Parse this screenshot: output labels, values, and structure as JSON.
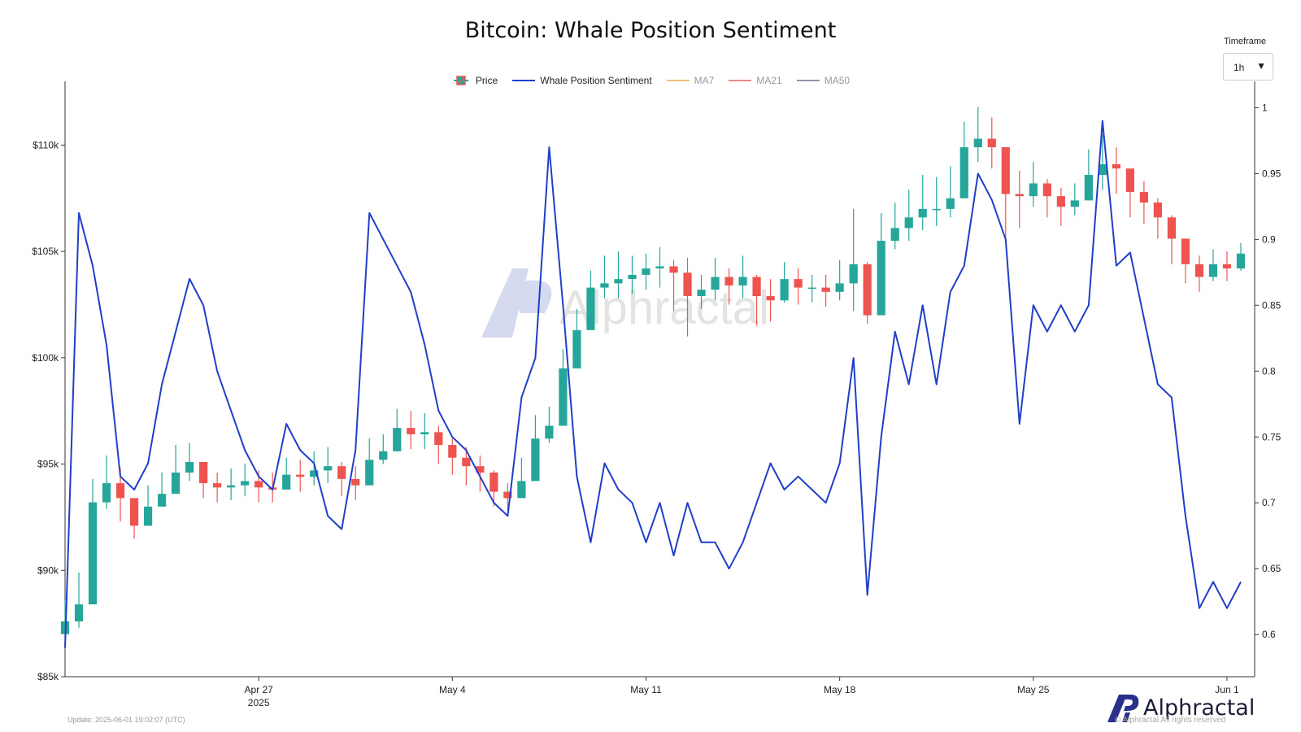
{
  "title": "Bitcoin: Whale Position Sentiment",
  "timeframe": {
    "label": "Timeframe",
    "value": "1h"
  },
  "legend": [
    {
      "name": "Price",
      "color": "#26a69a",
      "muted": false,
      "type": "candle"
    },
    {
      "name": "Whale Position Sentiment",
      "color": "#1f3fc9",
      "muted": false,
      "type": "line"
    },
    {
      "name": "MA7",
      "color": "#f0c27b",
      "muted": true,
      "type": "line"
    },
    {
      "name": "MA21",
      "color": "#e88a8a",
      "muted": true,
      "type": "line"
    },
    {
      "name": "MA50",
      "color": "#9a8ea8",
      "muted": true,
      "type": "line"
    }
  ],
  "watermark": "Alphractal",
  "footer": {
    "update": "Update: 2025-06-01 19:02:07 (UTC)",
    "brand": "Alphractal",
    "copyright": "© Alphractal All rights reserved"
  },
  "colors": {
    "up": "#26a69a",
    "down": "#ef5350",
    "sentiment": "#1f3fc9",
    "axis": "#333333"
  },
  "chart_data": {
    "type": "line",
    "title": "Bitcoin: Whale Position Sentiment",
    "x_axis": {
      "range": [
        "2025-04-20",
        "2025-06-02"
      ],
      "ticks": [
        {
          "date": "2025-04-27",
          "label": "Apr 27",
          "sublabel": "2025"
        },
        {
          "date": "2025-05-04",
          "label": "May 4",
          "sublabel": ""
        },
        {
          "date": "2025-05-11",
          "label": "May 11",
          "sublabel": ""
        },
        {
          "date": "2025-05-18",
          "label": "May 18",
          "sublabel": ""
        },
        {
          "date": "2025-05-25",
          "label": "May 25",
          "sublabel": ""
        },
        {
          "date": "2025-06-01",
          "label": "Jun 1",
          "sublabel": ""
        }
      ]
    },
    "y_left": {
      "ylim": [
        85000,
        113000
      ],
      "ticks": [
        {
          "value": 85000,
          "label": "$85k"
        },
        {
          "value": 90000,
          "label": "$90k"
        },
        {
          "value": 95000,
          "label": "$95k"
        },
        {
          "value": 100000,
          "label": "$100k"
        },
        {
          "value": 105000,
          "label": "$105k"
        },
        {
          "value": 110000,
          "label": "$110k"
        }
      ]
    },
    "y_right": {
      "ylim": [
        0.568,
        1.02
      ],
      "ticks": [
        {
          "value": 0.6,
          "label": "0.6"
        },
        {
          "value": 0.65,
          "label": "0.65"
        },
        {
          "value": 0.7,
          "label": "0.7"
        },
        {
          "value": 0.75,
          "label": "0.75"
        },
        {
          "value": 0.8,
          "label": "0.8"
        },
        {
          "value": 0.85,
          "label": "0.85"
        },
        {
          "value": 0.9,
          "label": "0.9"
        },
        {
          "value": 0.95,
          "label": "0.95"
        },
        {
          "value": 1,
          "label": "1"
        }
      ]
    },
    "series": [
      {
        "name": "Price",
        "type": "candlestick",
        "axis": "left",
        "x": [
          "2025-04-20T00:00",
          "2025-04-20T12:00",
          "2025-04-21T00:00",
          "2025-04-21T12:00",
          "2025-04-22T00:00",
          "2025-04-22T12:00",
          "2025-04-23T00:00",
          "2025-04-23T12:00",
          "2025-04-24T00:00",
          "2025-04-24T12:00",
          "2025-04-25T00:00",
          "2025-04-25T12:00",
          "2025-04-26T00:00",
          "2025-04-26T12:00",
          "2025-04-27T00:00",
          "2025-04-27T12:00",
          "2025-04-28T00:00",
          "2025-04-28T12:00",
          "2025-04-29T00:00",
          "2025-04-29T12:00",
          "2025-04-30T00:00",
          "2025-04-30T12:00",
          "2025-05-01T00:00",
          "2025-05-01T12:00",
          "2025-05-02T00:00",
          "2025-05-02T12:00",
          "2025-05-03T00:00",
          "2025-05-03T12:00",
          "2025-05-04T00:00",
          "2025-05-04T12:00",
          "2025-05-05T00:00",
          "2025-05-05T12:00",
          "2025-05-06T00:00",
          "2025-05-06T12:00",
          "2025-05-07T00:00",
          "2025-05-07T12:00",
          "2025-05-08T00:00",
          "2025-05-08T12:00",
          "2025-05-09T00:00",
          "2025-05-09T12:00",
          "2025-05-10T00:00",
          "2025-05-10T12:00",
          "2025-05-11T00:00",
          "2025-05-11T12:00",
          "2025-05-12T00:00",
          "2025-05-12T12:00",
          "2025-05-13T00:00",
          "2025-05-13T12:00",
          "2025-05-14T00:00",
          "2025-05-14T12:00",
          "2025-05-15T00:00",
          "2025-05-15T12:00",
          "2025-05-16T00:00",
          "2025-05-16T12:00",
          "2025-05-17T00:00",
          "2025-05-17T12:00",
          "2025-05-18T00:00",
          "2025-05-18T12:00",
          "2025-05-19T00:00",
          "2025-05-19T12:00",
          "2025-05-20T00:00",
          "2025-05-20T12:00",
          "2025-05-21T00:00",
          "2025-05-21T12:00",
          "2025-05-22T00:00",
          "2025-05-22T12:00",
          "2025-05-23T00:00",
          "2025-05-23T12:00",
          "2025-05-24T00:00",
          "2025-05-24T12:00",
          "2025-05-25T00:00",
          "2025-05-25T12:00",
          "2025-05-26T00:00",
          "2025-05-26T12:00",
          "2025-05-27T00:00",
          "2025-05-27T12:00",
          "2025-05-28T00:00",
          "2025-05-28T12:00",
          "2025-05-29T00:00",
          "2025-05-29T12:00",
          "2025-05-30T00:00",
          "2025-05-30T12:00",
          "2025-05-31T00:00",
          "2025-05-31T12:00",
          "2025-06-01T00:00",
          "2025-06-01T12:00"
        ],
        "close": [
          87600,
          88400,
          93200,
          94100,
          93400,
          92100,
          93000,
          93600,
          94600,
          95100,
          94100,
          93900,
          94000,
          94200,
          93900,
          93800,
          94500,
          94400,
          94700,
          94900,
          94300,
          94000,
          95200,
          95600,
          96700,
          96400,
          96500,
          95900,
          95300,
          94900,
          94600,
          93700,
          93400,
          94200,
          96200,
          96800,
          99500,
          101300,
          103300,
          103500,
          103700,
          103900,
          104200,
          104300,
          104000,
          102900,
          103200,
          103800,
          103400,
          103800,
          102900,
          102700,
          103700,
          103300,
          103300,
          103100,
          103500,
          104400,
          102000,
          105500,
          106100,
          106600,
          107000,
          107000,
          107500,
          109900,
          110300,
          109900,
          107700,
          107600,
          108200,
          107600,
          107100,
          107400,
          108600,
          109100,
          108900,
          107800,
          107300,
          106600,
          105600,
          104400,
          103800,
          104400,
          104200,
          104900
        ],
        "high": [
          88600,
          89900,
          94300,
          95400,
          94800,
          93300,
          94000,
          94600,
          95900,
          96000,
          95000,
          94600,
          94800,
          95000,
          94700,
          94600,
          95300,
          95200,
          95600,
          95800,
          95100,
          94900,
          96200,
          96400,
          97600,
          97500,
          97400,
          96800,
          96200,
          95800,
          95400,
          94700,
          94100,
          95300,
          97300,
          97700,
          100400,
          102300,
          104100,
          104800,
          105000,
          104800,
          104900,
          105200,
          104600,
          104700,
          103900,
          104700,
          104200,
          104800,
          103900,
          103700,
          104500,
          104200,
          103900,
          103900,
          104600,
          107000,
          104500,
          106800,
          107300,
          107900,
          108600,
          108500,
          109000,
          111100,
          111800,
          111300,
          109200,
          108800,
          109200,
          108400,
          108000,
          108200,
          109800,
          110500,
          109900,
          108700,
          108300,
          107500,
          106700,
          105600,
          104800,
          105100,
          105000,
          105400
        ],
        "low": [
          86800,
          87300,
          91100,
          92900,
          92300,
          91500,
          92100,
          93000,
          93700,
          94200,
          93400,
          93200,
          93300,
          93500,
          93200,
          93200,
          93800,
          93700,
          94000,
          94100,
          93500,
          93300,
          94500,
          95000,
          95900,
          95700,
          95700,
          95000,
          94500,
          94000,
          93700,
          93000,
          92800,
          93400,
          95400,
          96000,
          98600,
          100600,
          102500,
          102800,
          102800,
          103000,
          103200,
          103300,
          102200,
          101000,
          102300,
          102700,
          102500,
          102800,
          101500,
          101700,
          102600,
          102500,
          102600,
          102400,
          102700,
          102200,
          101600,
          103900,
          105100,
          105500,
          106000,
          106200,
          106600,
          107800,
          109200,
          108900,
          105400,
          106100,
          107100,
          106600,
          106200,
          106700,
          107500,
          107900,
          107700,
          106600,
          106300,
          105600,
          104400,
          103500,
          103100,
          103600,
          103600,
          104100
        ]
      },
      {
        "name": "Whale Position Sentiment",
        "type": "line",
        "axis": "right",
        "x": [
          "2025-04-20T00:00",
          "2025-04-20T12:00",
          "2025-04-21T00:00",
          "2025-04-21T12:00",
          "2025-04-22T00:00",
          "2025-04-22T12:00",
          "2025-04-23T00:00",
          "2025-04-23T12:00",
          "2025-04-24T00:00",
          "2025-04-24T12:00",
          "2025-04-25T00:00",
          "2025-04-25T12:00",
          "2025-04-26T00:00",
          "2025-04-26T12:00",
          "2025-04-27T00:00",
          "2025-04-27T12:00",
          "2025-04-28T00:00",
          "2025-04-28T12:00",
          "2025-04-29T00:00",
          "2025-04-29T12:00",
          "2025-04-30T00:00",
          "2025-04-30T12:00",
          "2025-05-01T00:00",
          "2025-05-01T12:00",
          "2025-05-02T00:00",
          "2025-05-02T12:00",
          "2025-05-03T00:00",
          "2025-05-03T12:00",
          "2025-05-04T00:00",
          "2025-05-04T12:00",
          "2025-05-05T00:00",
          "2025-05-05T12:00",
          "2025-05-06T00:00",
          "2025-05-06T12:00",
          "2025-05-07T00:00",
          "2025-05-07T12:00",
          "2025-05-08T00:00",
          "2025-05-08T12:00",
          "2025-05-09T00:00",
          "2025-05-09T12:00",
          "2025-05-10T00:00",
          "2025-05-10T12:00",
          "2025-05-11T00:00",
          "2025-05-11T12:00",
          "2025-05-12T00:00",
          "2025-05-12T12:00",
          "2025-05-13T00:00",
          "2025-05-13T12:00",
          "2025-05-14T00:00",
          "2025-05-14T12:00",
          "2025-05-15T00:00",
          "2025-05-15T12:00",
          "2025-05-16T00:00",
          "2025-05-16T12:00",
          "2025-05-17T00:00",
          "2025-05-17T12:00",
          "2025-05-18T00:00",
          "2025-05-18T12:00",
          "2025-05-19T00:00",
          "2025-05-19T12:00",
          "2025-05-20T00:00",
          "2025-05-20T12:00",
          "2025-05-21T00:00",
          "2025-05-21T12:00",
          "2025-05-22T00:00",
          "2025-05-22T12:00",
          "2025-05-23T00:00",
          "2025-05-23T12:00",
          "2025-05-24T00:00",
          "2025-05-24T12:00",
          "2025-05-25T00:00",
          "2025-05-25T12:00",
          "2025-05-26T00:00",
          "2025-05-26T12:00",
          "2025-05-27T00:00",
          "2025-05-27T12:00",
          "2025-05-28T00:00",
          "2025-05-28T12:00",
          "2025-05-29T00:00",
          "2025-05-29T12:00",
          "2025-05-30T00:00",
          "2025-05-30T12:00",
          "2025-05-31T00:00",
          "2025-05-31T12:00",
          "2025-06-01T00:00",
          "2025-06-01T12:00"
        ],
        "values": [
          0.59,
          0.92,
          0.88,
          0.82,
          0.72,
          0.71,
          0.73,
          0.79,
          0.83,
          0.87,
          0.85,
          0.8,
          0.77,
          0.74,
          0.72,
          0.71,
          0.76,
          0.74,
          0.73,
          0.69,
          0.68,
          0.74,
          0.92,
          0.9,
          0.88,
          0.86,
          0.82,
          0.77,
          0.75,
          0.74,
          0.72,
          0.7,
          0.69,
          0.78,
          0.81,
          0.97,
          0.85,
          0.72,
          0.67,
          0.73,
          0.71,
          0.7,
          0.67,
          0.7,
          0.66,
          0.7,
          0.67,
          0.67,
          0.65,
          0.67,
          0.7,
          0.73,
          0.71,
          0.72,
          0.71,
          0.7,
          0.73,
          0.81,
          0.63,
          0.75,
          0.83,
          0.79,
          0.85,
          0.79,
          0.86,
          0.88,
          0.95,
          0.93,
          0.9,
          0.76,
          0.85,
          0.83,
          0.85,
          0.83,
          0.85,
          0.99,
          0.88,
          0.89,
          0.84,
          0.79,
          0.78,
          0.69,
          0.62,
          0.64,
          0.62,
          0.64
        ]
      }
    ]
  }
}
